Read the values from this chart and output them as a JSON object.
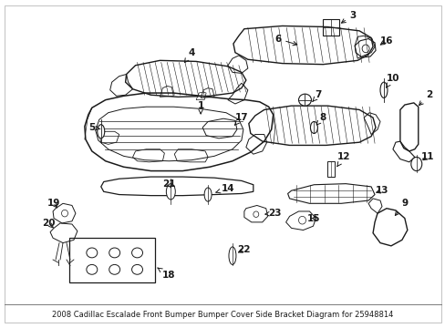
{
  "background_color": "#ffffff",
  "line_color": "#1a1a1a",
  "fig_width": 4.89,
  "fig_height": 3.6,
  "dpi": 100,
  "caption": "2008 Cadillac Escalade Front Bumper Bumper Cover Side Bracket Diagram for 25948814",
  "caption_fontsize": 6.0
}
